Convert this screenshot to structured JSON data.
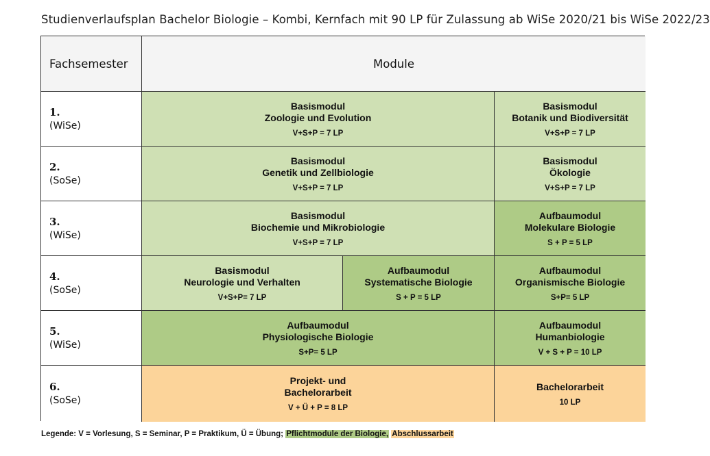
{
  "title": "Studienverlaufsplan Bachelor Biologie – Kombi, Kernfach mit 90 LP für Zulassung ab WiSe 2020/21 bis WiSe 2022/23",
  "header": {
    "semester_col": "Fachsemester",
    "modules_col": "Module"
  },
  "semesters": [
    {
      "num": "1.",
      "term": "(WiSe)"
    },
    {
      "num": "2.",
      "term": "(SoSe)"
    },
    {
      "num": "3.",
      "term": "(WiSe)"
    },
    {
      "num": "4.",
      "term": "(SoSe)"
    },
    {
      "num": "5.",
      "term": "(WiSe)"
    },
    {
      "num": "6.",
      "term": "(SoSe)"
    }
  ],
  "modules": {
    "s1a": {
      "type": "Basismodul",
      "name": "Zoologie und Evolution",
      "lp": "V+S+P = 7 LP"
    },
    "s1b": {
      "type": "Basismodul",
      "name": "Botanik und Biodiversität",
      "lp": "V+S+P = 7 LP"
    },
    "s2a": {
      "type": "Basismodul",
      "name": "Genetik und Zellbiologie",
      "lp": "V+S+P = 7 LP"
    },
    "s2b": {
      "type": "Basismodul",
      "name": "Ökologie",
      "lp": "V+S+P = 7 LP"
    },
    "s3a": {
      "type": "Basismodul",
      "name": "Biochemie und Mikrobiologie",
      "lp": "V+S+P = 7 LP"
    },
    "s3b": {
      "type": "Aufbaumodul",
      "name": "Molekulare Biologie",
      "lp": "S + P = 5 LP"
    },
    "s4a": {
      "type": "Basismodul",
      "name": "Neurologie und Verhalten",
      "lp": "V+S+P= 7 LP"
    },
    "s4b": {
      "type": "Aufbaumodul",
      "name": "Systematische Biologie",
      "lp": "S + P = 5 LP"
    },
    "s4c": {
      "type": "Aufbaumodul",
      "name": "Organismische Biologie",
      "lp": "S+P= 5 LP"
    },
    "s5a": {
      "type": "Aufbaumodul",
      "name": "Physiologische Biologie",
      "lp": "S+P= 5 LP"
    },
    "s5b": {
      "type": "Aufbaumodul",
      "name": "Humanbiologie",
      "lp": "V + S + P = 10 LP"
    },
    "s6a": {
      "type": "Projekt- und",
      "name": "Bachelorarbeit",
      "lp": "V + Ü + P = 8 LP"
    },
    "s6b": {
      "type": "Bachelorarbeit",
      "lp": "10 LP"
    }
  },
  "legend": {
    "text": "Legende: V = Vorlesung, S = Seminar, P = Praktikum, Ü = Übung; ",
    "green": "Pflichtmodule der Biologie,",
    "orange": "Abschlussarbeit"
  },
  "colors": {
    "basis": "#cfe0b4",
    "aufbau": "#aecb86",
    "abschluss": "#fcd49a",
    "header": "#f4f4f4"
  }
}
